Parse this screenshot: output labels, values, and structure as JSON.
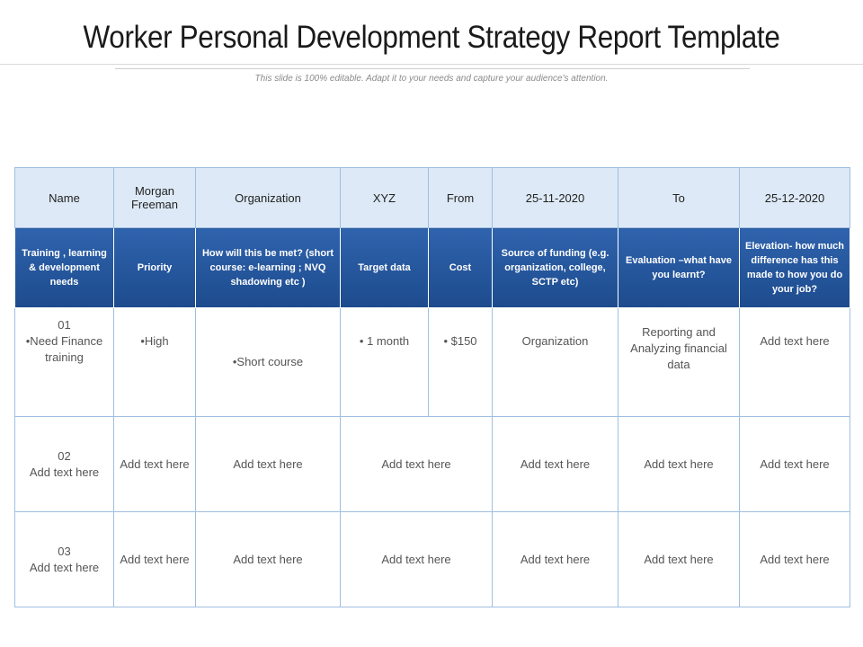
{
  "title": "Worker Personal Development Strategy Report Template",
  "subtitle": "This slide is 100% editable. Adapt it to your needs and capture your audience's attention.",
  "header_row": {
    "name_label": "Name",
    "name_value": "Morgan Freeman",
    "org_label": "Organization",
    "org_value": "XYZ",
    "from_label": "From",
    "from_value": "25-11-2020",
    "to_label": "To",
    "to_value": "25-12-2020"
  },
  "columns": [
    "Training , learning & development needs",
    "Priority",
    "How will this be met? (short course: e-learning ; NVQ shadowing etc )",
    "Target data",
    "Cost",
    "Source of funding (e.g. organization, college, SCTP etc)",
    "Evaluation –what have you learnt?",
    "Elevation- how much difference has this made to how you do your job?"
  ],
  "rows": [
    {
      "num": "01",
      "need": "•Need Finance training",
      "priority": "•High",
      "method": "•Short course",
      "target": "•  1 month",
      "cost": "•  $150",
      "funding": "Organization",
      "evaluation": "Reporting and Analyzing financial data",
      "elevation": "Add text here"
    },
    {
      "num": "02",
      "need": "Add text here",
      "priority": "Add text here",
      "method": "Add text here",
      "target_cost": "Add text here",
      "funding": "Add text here",
      "evaluation": "Add text here",
      "elevation": "Add text here"
    },
    {
      "num": "03",
      "need": "Add text here",
      "priority": "Add text here",
      "method": "Add text here",
      "target_cost": "Add text here",
      "funding": "Add text here",
      "evaluation": "Add text here",
      "elevation": "Add text here"
    }
  ]
}
